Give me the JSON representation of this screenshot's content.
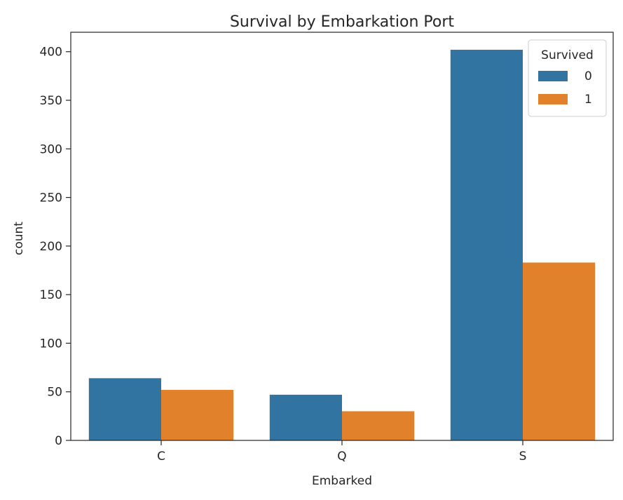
{
  "chart_data": {
    "type": "bar",
    "title": "Survival by Embarkation Port",
    "xlabel": "Embarked",
    "ylabel": "count",
    "categories": [
      "C",
      "Q",
      "S"
    ],
    "series": [
      {
        "name": "0",
        "values": [
          64,
          47,
          402
        ],
        "color": "#3274a1"
      },
      {
        "name": "1",
        "values": [
          52,
          30,
          183
        ],
        "color": "#e1812c"
      }
    ],
    "ylim": [
      0,
      420
    ],
    "yticks": [
      0,
      50,
      100,
      150,
      200,
      250,
      300,
      350,
      400
    ],
    "grid": false,
    "legend": {
      "title": "Survived",
      "placement": "top-right"
    }
  }
}
